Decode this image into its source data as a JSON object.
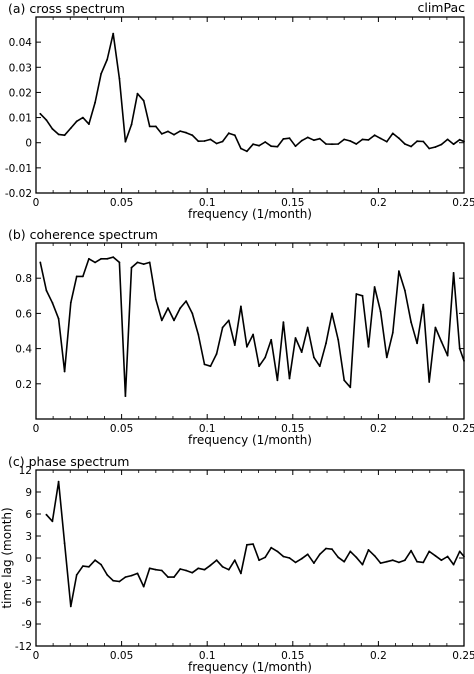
{
  "figure": {
    "credit": "climPac"
  },
  "chart_data": [
    {
      "type": "line",
      "title": "(a) cross spectrum",
      "xlabel": "frequency (1/month)",
      "ylabel": "",
      "xlim": [
        0,
        0.25
      ],
      "ylim": [
        -0.02,
        0.05
      ],
      "xticks": [
        0,
        0.05,
        0.1,
        0.15,
        0.2,
        0.25
      ],
      "xtick_labels": [
        "0",
        "0.05",
        "0.1",
        "0.15",
        "0.2",
        "0.25"
      ],
      "yticks": [
        -0.02,
        -0.01,
        0,
        0.01,
        0.02,
        0.03,
        0.04
      ],
      "ytick_labels": [
        "-0.02",
        "-0.01",
        "0",
        "0.01",
        "0.02",
        "0.03",
        "0.04"
      ],
      "grid": false,
      "x": [
        0.0025,
        0.0061,
        0.0096,
        0.0132,
        0.0167,
        0.0203,
        0.0238,
        0.0274,
        0.0309,
        0.0345,
        0.038,
        0.0416,
        0.0451,
        0.0487,
        0.0522,
        0.0558,
        0.0593,
        0.0629,
        0.0664,
        0.07,
        0.0735,
        0.0771,
        0.0806,
        0.0842,
        0.0877,
        0.0913,
        0.0948,
        0.0984,
        0.1019,
        0.1055,
        0.109,
        0.1126,
        0.1161,
        0.1197,
        0.1232,
        0.1268,
        0.1303,
        0.1339,
        0.1374,
        0.141,
        0.1445,
        0.1481,
        0.1516,
        0.1552,
        0.1587,
        0.1623,
        0.1658,
        0.1694,
        0.1729,
        0.1765,
        0.18,
        0.1836,
        0.1871,
        0.1907,
        0.1942,
        0.1978,
        0.2013,
        0.2049,
        0.2084,
        0.212,
        0.2155,
        0.2191,
        0.2226,
        0.2262,
        0.2297,
        0.2333,
        0.2368,
        0.2404,
        0.2439,
        0.2475,
        0.25
      ],
      "values": [
        0.0115,
        0.009,
        0.0055,
        0.0033,
        0.003,
        0.0058,
        0.0085,
        0.01,
        0.0074,
        0.016,
        0.0274,
        0.0331,
        0.0434,
        0.0255,
        0.0004,
        0.0072,
        0.0195,
        0.0167,
        0.0065,
        0.0065,
        0.0035,
        0.0045,
        0.0032,
        0.0046,
        0.004,
        0.003,
        0.0006,
        0.0007,
        0.0013,
        -0.0003,
        0.0005,
        0.0038,
        0.003,
        -0.0023,
        -0.0034,
        -0.0006,
        -0.0012,
        0.0003,
        -0.0014,
        -0.0016,
        0.0015,
        0.0018,
        -0.0014,
        0.0008,
        0.0021,
        0.001,
        0.0016,
        -0.0005,
        -0.0006,
        -0.0005,
        0.0013,
        0.0007,
        -0.0005,
        0.0013,
        0.0011,
        0.003,
        0.0017,
        0.0004,
        0.0037,
        0.0018,
        -0.0005,
        -0.0015,
        0.0006,
        0.0005,
        -0.0023,
        -0.0017,
        -0.0007,
        0.0013,
        -0.0006,
        0.0012,
        0.0005
      ]
    },
    {
      "type": "line",
      "title": "(b) coherence spectrum",
      "xlabel": "frequency (1/month)",
      "ylabel": "",
      "xlim": [
        0,
        0.25
      ],
      "ylim": [
        0,
        1
      ],
      "xticks": [
        0,
        0.05,
        0.1,
        0.15,
        0.2,
        0.25
      ],
      "xtick_labels": [
        "0",
        "0.05",
        "0.1",
        "0.15",
        "0.2",
        "0.25"
      ],
      "yticks": [
        0.2,
        0.4,
        0.6,
        0.8
      ],
      "ytick_labels": [
        "0.2",
        "0.4",
        "0.6",
        "0.8"
      ],
      "grid": false,
      "x": [
        0.0025,
        0.0061,
        0.0096,
        0.0132,
        0.0167,
        0.0203,
        0.0238,
        0.0274,
        0.0309,
        0.0345,
        0.038,
        0.0416,
        0.0451,
        0.0487,
        0.0522,
        0.0558,
        0.0593,
        0.0629,
        0.0664,
        0.07,
        0.0735,
        0.0771,
        0.0806,
        0.0842,
        0.0877,
        0.0913,
        0.0948,
        0.0984,
        0.1019,
        0.1055,
        0.109,
        0.1126,
        0.1161,
        0.1197,
        0.1232,
        0.1268,
        0.1303,
        0.1339,
        0.1374,
        0.141,
        0.1445,
        0.1481,
        0.1516,
        0.1552,
        0.1587,
        0.1623,
        0.1658,
        0.1694,
        0.1729,
        0.1765,
        0.18,
        0.1836,
        0.1871,
        0.1907,
        0.1942,
        0.1978,
        0.2013,
        0.2049,
        0.2084,
        0.212,
        0.2155,
        0.2191,
        0.2226,
        0.2262,
        0.2297,
        0.2333,
        0.2368,
        0.2404,
        0.2439,
        0.2475,
        0.25
      ],
      "values": [
        0.89,
        0.73,
        0.66,
        0.57,
        0.27,
        0.66,
        0.81,
        0.81,
        0.91,
        0.89,
        0.91,
        0.91,
        0.92,
        0.89,
        0.13,
        0.86,
        0.89,
        0.88,
        0.89,
        0.68,
        0.56,
        0.63,
        0.56,
        0.63,
        0.67,
        0.6,
        0.48,
        0.31,
        0.3,
        0.37,
        0.52,
        0.56,
        0.42,
        0.64,
        0.41,
        0.48,
        0.3,
        0.35,
        0.45,
        0.22,
        0.55,
        0.23,
        0.46,
        0.38,
        0.52,
        0.35,
        0.3,
        0.43,
        0.6,
        0.45,
        0.22,
        0.18,
        0.71,
        0.7,
        0.41,
        0.75,
        0.61,
        0.35,
        0.49,
        0.84,
        0.73,
        0.55,
        0.43,
        0.65,
        0.21,
        0.52,
        0.44,
        0.36,
        0.83,
        0.4,
        0.33
      ]
    },
    {
      "type": "line",
      "title": "(c) phase spectrum",
      "xlabel": "frequency (1/month)",
      "ylabel": "time lag (month)",
      "xlim": [
        0,
        0.25
      ],
      "ylim": [
        -12,
        12
      ],
      "xticks": [
        0,
        0.05,
        0.1,
        0.15,
        0.2,
        0.25
      ],
      "xtick_labels": [
        "0",
        "0.05",
        "0.1",
        "0.15",
        "0.2",
        "0.25"
      ],
      "yticks": [
        -12,
        -9,
        -6,
        -3,
        0,
        3,
        6,
        9,
        12
      ],
      "ytick_labels": [
        "-12",
        "-9",
        "-6",
        "-3",
        "0",
        "3",
        "6",
        "9",
        "12"
      ],
      "grid": false,
      "x": [
        0.0061,
        0.0096,
        0.0132,
        0.0167,
        0.0203,
        0.0238,
        0.0274,
        0.0309,
        0.0345,
        0.038,
        0.0416,
        0.0451,
        0.0487,
        0.0522,
        0.0558,
        0.0593,
        0.0629,
        0.0664,
        0.07,
        0.0735,
        0.0771,
        0.0806,
        0.0842,
        0.0877,
        0.0913,
        0.0948,
        0.0984,
        0.1019,
        0.1055,
        0.109,
        0.1126,
        0.1161,
        0.1197,
        0.1232,
        0.1268,
        0.1303,
        0.1339,
        0.1374,
        0.141,
        0.1445,
        0.1481,
        0.1516,
        0.1552,
        0.1587,
        0.1623,
        0.1658,
        0.1694,
        0.1729,
        0.1765,
        0.18,
        0.1836,
        0.1871,
        0.1907,
        0.1942,
        0.1978,
        0.2013,
        0.2049,
        0.2084,
        0.212,
        0.2155,
        0.2191,
        0.2226,
        0.2262,
        0.2297,
        0.2333,
        0.2368,
        0.2404,
        0.2439,
        0.2475,
        0.25
      ],
      "values": [
        5.9,
        5.0,
        10.4,
        2.0,
        -6.6,
        -2.3,
        -1.1,
        -1.2,
        -0.3,
        -0.9,
        -2.3,
        -3.1,
        -3.2,
        -2.6,
        -2.4,
        -2.1,
        -3.9,
        -1.4,
        -1.6,
        -1.7,
        -2.6,
        -2.6,
        -1.5,
        -1.7,
        -2.0,
        -1.4,
        -1.6,
        -1.0,
        -0.3,
        -1.2,
        -1.6,
        -0.3,
        -2.1,
        1.8,
        1.9,
        -0.3,
        0.1,
        1.4,
        0.9,
        0.2,
        0.0,
        -0.6,
        -0.1,
        0.5,
        -0.7,
        0.5,
        1.3,
        1.2,
        0.1,
        -0.5,
        0.9,
        0.1,
        -0.9,
        1.1,
        0.3,
        -0.7,
        -0.5,
        -0.3,
        -0.6,
        -0.3,
        1.0,
        -0.5,
        -0.6,
        0.9,
        0.3,
        -0.3,
        0.2,
        -0.9,
        0.9,
        0.2
      ]
    }
  ]
}
